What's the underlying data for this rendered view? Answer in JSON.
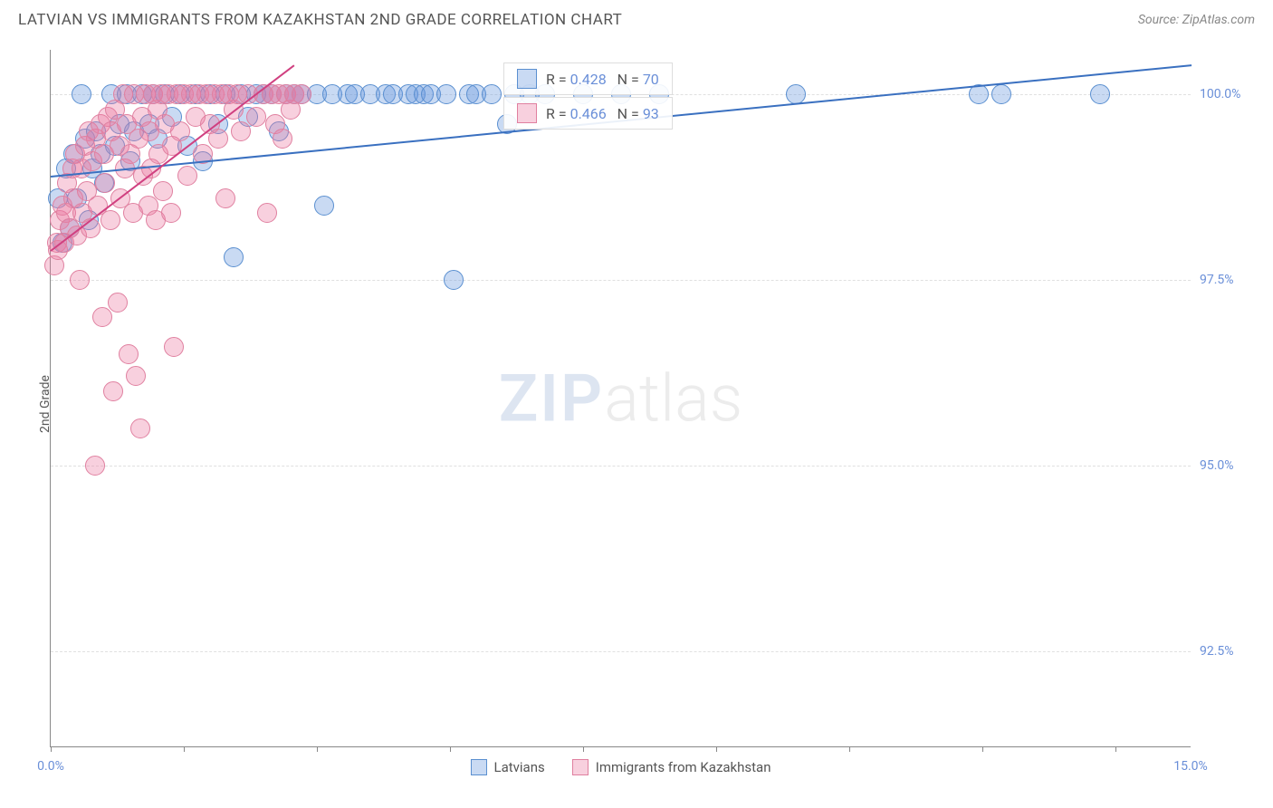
{
  "title": "LATVIAN VS IMMIGRANTS FROM KAZAKHSTAN 2ND GRADE CORRELATION CHART",
  "source": "Source: ZipAtlas.com",
  "ylabel": "2nd Grade",
  "watermark": {
    "part1": "ZIP",
    "part2": "atlas"
  },
  "chart": {
    "type": "scatter",
    "xlim": [
      0,
      15
    ],
    "ylim": [
      91.2,
      100.6
    ],
    "yticks": [
      92.5,
      95.0,
      97.5,
      100.0
    ],
    "ytick_labels": [
      "92.5%",
      "95.0%",
      "97.5%",
      "100.0%"
    ],
    "xticks": [
      0,
      1.75,
      3.5,
      5.25,
      7.0,
      8.75,
      10.5,
      12.25,
      14.0
    ],
    "xaxis_left_label": "0.0%",
    "xaxis_right_label": "15.0%",
    "grid_color": "#e0e0e0",
    "axis_color": "#888888",
    "marker_radius": 11,
    "marker_opacity": 0.35,
    "series": [
      {
        "name": "Latvians",
        "color_fill": "rgba(100,150,220,0.35)",
        "color_stroke": "#5a8fd0",
        "line_color": "#3a70c0",
        "R": "0.428",
        "N": "70",
        "trend": {
          "x1": 0.0,
          "y1": 98.9,
          "x2": 15.0,
          "y2": 100.4
        },
        "points": [
          [
            0.1,
            98.6
          ],
          [
            0.15,
            98.0
          ],
          [
            0.2,
            99.0
          ],
          [
            0.25,
            98.2
          ],
          [
            0.3,
            99.2
          ],
          [
            0.35,
            98.6
          ],
          [
            0.4,
            100.0
          ],
          [
            0.45,
            99.4
          ],
          [
            0.5,
            98.3
          ],
          [
            0.55,
            99.0
          ],
          [
            0.6,
            99.5
          ],
          [
            0.65,
            99.2
          ],
          [
            0.7,
            98.8
          ],
          [
            0.8,
            100.0
          ],
          [
            0.85,
            99.3
          ],
          [
            0.9,
            99.6
          ],
          [
            1.0,
            100.0
          ],
          [
            1.05,
            99.1
          ],
          [
            1.1,
            99.5
          ],
          [
            1.2,
            100.0
          ],
          [
            1.3,
            99.6
          ],
          [
            1.35,
            100.0
          ],
          [
            1.4,
            99.4
          ],
          [
            1.5,
            100.0
          ],
          [
            1.6,
            99.7
          ],
          [
            1.7,
            100.0
          ],
          [
            1.8,
            99.3
          ],
          [
            1.9,
            100.0
          ],
          [
            2.0,
            99.1
          ],
          [
            2.1,
            100.0
          ],
          [
            2.2,
            99.6
          ],
          [
            2.3,
            100.0
          ],
          [
            2.4,
            97.8
          ],
          [
            2.5,
            100.0
          ],
          [
            2.6,
            99.7
          ],
          [
            2.7,
            100.0
          ],
          [
            2.8,
            100.0
          ],
          [
            2.9,
            100.0
          ],
          [
            3.0,
            99.5
          ],
          [
            3.1,
            100.0
          ],
          [
            3.2,
            100.0
          ],
          [
            3.3,
            100.0
          ],
          [
            3.5,
            100.0
          ],
          [
            3.6,
            98.5
          ],
          [
            3.7,
            100.0
          ],
          [
            3.9,
            100.0
          ],
          [
            4.0,
            100.0
          ],
          [
            4.2,
            100.0
          ],
          [
            4.4,
            100.0
          ],
          [
            4.5,
            100.0
          ],
          [
            4.7,
            100.0
          ],
          [
            4.8,
            100.0
          ],
          [
            4.9,
            100.0
          ],
          [
            5.0,
            100.0
          ],
          [
            5.2,
            100.0
          ],
          [
            5.3,
            97.5
          ],
          [
            5.5,
            100.0
          ],
          [
            5.6,
            100.0
          ],
          [
            5.8,
            100.0
          ],
          [
            6.0,
            99.6
          ],
          [
            6.1,
            100.0
          ],
          [
            6.3,
            100.0
          ],
          [
            6.5,
            100.0
          ],
          [
            7.0,
            100.0
          ],
          [
            7.5,
            100.0
          ],
          [
            8.0,
            100.0
          ],
          [
            9.8,
            100.0
          ],
          [
            12.2,
            100.0
          ],
          [
            12.5,
            100.0
          ],
          [
            13.8,
            100.0
          ]
        ]
      },
      {
        "name": "Immigrants from Kazakhstan",
        "color_fill": "rgba(235,120,160,0.35)",
        "color_stroke": "#e080a0",
        "line_color": "#d04080",
        "R": "0.466",
        "N": "93",
        "trend": {
          "x1": 0.0,
          "y1": 97.9,
          "x2": 3.2,
          "y2": 100.4
        },
        "points": [
          [
            0.05,
            97.7
          ],
          [
            0.08,
            98.0
          ],
          [
            0.1,
            97.9
          ],
          [
            0.12,
            98.3
          ],
          [
            0.15,
            98.5
          ],
          [
            0.18,
            98.0
          ],
          [
            0.2,
            98.4
          ],
          [
            0.22,
            98.8
          ],
          [
            0.25,
            98.2
          ],
          [
            0.28,
            99.0
          ],
          [
            0.3,
            98.6
          ],
          [
            0.32,
            99.2
          ],
          [
            0.35,
            98.1
          ],
          [
            0.38,
            97.5
          ],
          [
            0.4,
            99.0
          ],
          [
            0.42,
            98.4
          ],
          [
            0.45,
            99.3
          ],
          [
            0.48,
            98.7
          ],
          [
            0.5,
            99.5
          ],
          [
            0.52,
            98.2
          ],
          [
            0.55,
            99.1
          ],
          [
            0.58,
            95.0
          ],
          [
            0.6,
            99.4
          ],
          [
            0.62,
            98.5
          ],
          [
            0.65,
            99.6
          ],
          [
            0.68,
            97.0
          ],
          [
            0.7,
            99.2
          ],
          [
            0.72,
            98.8
          ],
          [
            0.75,
            99.7
          ],
          [
            0.78,
            98.3
          ],
          [
            0.8,
            99.5
          ],
          [
            0.82,
            96.0
          ],
          [
            0.85,
            99.8
          ],
          [
            0.88,
            97.2
          ],
          [
            0.9,
            99.3
          ],
          [
            0.92,
            98.6
          ],
          [
            0.95,
            100.0
          ],
          [
            0.98,
            99.0
          ],
          [
            1.0,
            99.6
          ],
          [
            1.02,
            96.5
          ],
          [
            1.05,
            99.2
          ],
          [
            1.08,
            98.4
          ],
          [
            1.1,
            100.0
          ],
          [
            1.12,
            96.2
          ],
          [
            1.15,
            99.4
          ],
          [
            1.18,
            95.5
          ],
          [
            1.2,
            99.7
          ],
          [
            1.22,
            98.9
          ],
          [
            1.25,
            100.0
          ],
          [
            1.28,
            98.5
          ],
          [
            1.3,
            99.5
          ],
          [
            1.32,
            99.0
          ],
          [
            1.35,
            100.0
          ],
          [
            1.38,
            98.3
          ],
          [
            1.4,
            99.8
          ],
          [
            1.42,
            99.2
          ],
          [
            1.45,
            100.0
          ],
          [
            1.48,
            98.7
          ],
          [
            1.5,
            99.6
          ],
          [
            1.55,
            100.0
          ],
          [
            1.58,
            98.4
          ],
          [
            1.6,
            99.3
          ],
          [
            1.62,
            96.6
          ],
          [
            1.65,
            100.0
          ],
          [
            1.7,
            99.5
          ],
          [
            1.75,
            100.0
          ],
          [
            1.8,
            98.9
          ],
          [
            1.85,
            100.0
          ],
          [
            1.9,
            99.7
          ],
          [
            1.95,
            100.0
          ],
          [
            2.0,
            99.2
          ],
          [
            2.05,
            100.0
          ],
          [
            2.1,
            99.6
          ],
          [
            2.15,
            100.0
          ],
          [
            2.2,
            99.4
          ],
          [
            2.25,
            100.0
          ],
          [
            2.3,
            98.6
          ],
          [
            2.35,
            100.0
          ],
          [
            2.4,
            99.8
          ],
          [
            2.45,
            100.0
          ],
          [
            2.5,
            99.5
          ],
          [
            2.6,
            100.0
          ],
          [
            2.7,
            99.7
          ],
          [
            2.8,
            100.0
          ],
          [
            2.85,
            98.4
          ],
          [
            2.9,
            100.0
          ],
          [
            2.95,
            99.6
          ],
          [
            3.0,
            100.0
          ],
          [
            3.05,
            99.4
          ],
          [
            3.1,
            100.0
          ],
          [
            3.15,
            99.8
          ],
          [
            3.2,
            100.0
          ],
          [
            3.3,
            100.0
          ]
        ]
      }
    ]
  }
}
